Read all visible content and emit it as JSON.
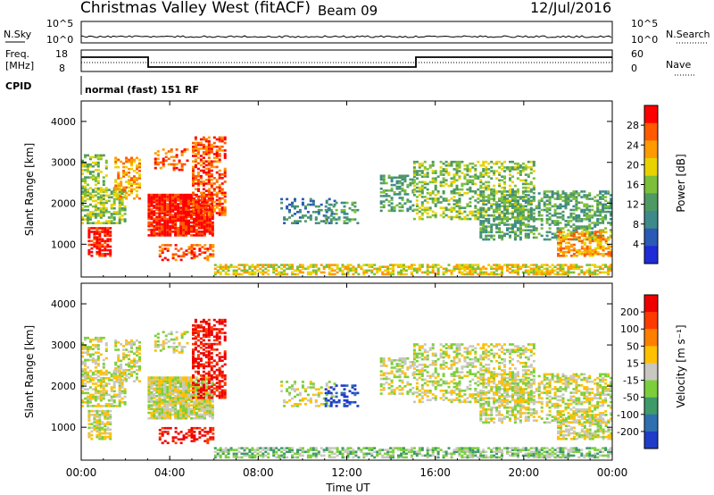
{
  "header": {
    "title": "Christmas Valley West (fitACF)",
    "beam": "Beam 09",
    "date": "12/Jul/2016"
  },
  "top_panels": {
    "nsky_label": "N.Sky",
    "nsky_ticks": [
      "10^5",
      "10^0"
    ],
    "nsearch_label": "N.Search",
    "nsearch_ticks": [
      "10^5",
      "10^0"
    ],
    "freq_label": "Freq.",
    "freq_unit": "[MHz]",
    "freq_ticks": [
      "18",
      "8"
    ],
    "nave_label": "Nave",
    "nave_ticks": [
      "60",
      "0"
    ],
    "cpid_label": "CPID",
    "cpid_value": "normal (fast) 151 RF"
  },
  "colors": {
    "power_scale": [
      "#1f2bd6",
      "#2a5ab5",
      "#3e8a8a",
      "#4f9a62",
      "#7cbf3a",
      "#e8d300",
      "#ff9a00",
      "#ff5a00",
      "#ff0000"
    ],
    "velocity_scale": [
      "#1f3cc8",
      "#2f6fb0",
      "#3f9a6a",
      "#7ccf3a",
      "#c8c8c0",
      "#ffc000",
      "#ff7f00",
      "#ff3a00",
      "#ee0000"
    ]
  },
  "chart_data": [
    {
      "type": "heatmap",
      "name": "power",
      "xlabel": "",
      "ylabel": "Slant Range [km]",
      "x_ticks": [
        "00:00",
        "04:00",
        "08:00",
        "12:00",
        "16:00",
        "20:00",
        "00:00"
      ],
      "y_ticks": [
        "4000",
        "3000",
        "2000",
        "1000"
      ],
      "ylim": [
        200,
        4500
      ],
      "xlim_hours": [
        0,
        24
      ],
      "colorbar": {
        "label": "Power [dB]",
        "ticks": [
          "28",
          "24",
          "20",
          "16",
          "12",
          "8",
          "4"
        ],
        "range": [
          0,
          30
        ]
      }
    },
    {
      "type": "heatmap",
      "name": "velocity",
      "xlabel": "Time UT",
      "ylabel": "Slant Range [km]",
      "x_ticks": [
        "00:00",
        "04:00",
        "08:00",
        "12:00",
        "16:00",
        "20:00",
        "00:00"
      ],
      "y_ticks": [
        "4000",
        "3000",
        "2000",
        "1000"
      ],
      "ylim": [
        200,
        4500
      ],
      "xlim_hours": [
        0,
        24
      ],
      "colorbar": {
        "label": "Velocity [m s⁻¹]",
        "ticks": [
          "200",
          "100",
          "50",
          "15",
          "-15",
          "-50",
          "-100",
          "-200"
        ]
      }
    }
  ]
}
